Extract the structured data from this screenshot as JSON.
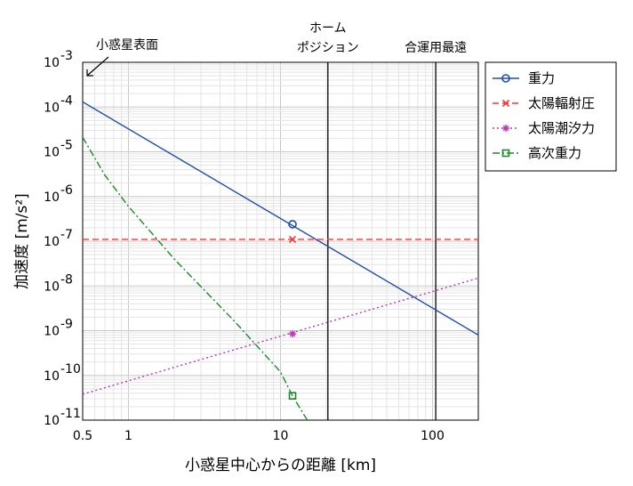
{
  "chart_data": {
    "type": "line",
    "xlabel": "小惑星中心からの距離 [km]",
    "ylabel": "加速度 [m/s²]",
    "xscale": "log",
    "yscale": "log",
    "xlim": [
      0.5,
      200
    ],
    "ylim": [
      1e-11,
      0.001
    ],
    "grid": true,
    "legend_position": "outside-top-right",
    "x_ticks": [
      {
        "value": 0.5,
        "label": "0.5"
      },
      {
        "value": 1,
        "label": "1"
      },
      {
        "value": 10,
        "label": "10"
      },
      {
        "value": 100,
        "label": "100"
      }
    ],
    "y_ticks": [
      {
        "value": 1e-11,
        "base": "10",
        "exp": "-11"
      },
      {
        "value": 1e-10,
        "base": "10",
        "exp": "-10"
      },
      {
        "value": 1e-09,
        "base": "10",
        "exp": "-9"
      },
      {
        "value": 1e-08,
        "base": "10",
        "exp": "-8"
      },
      {
        "value": 1e-07,
        "base": "10",
        "exp": "-7"
      },
      {
        "value": 1e-06,
        "base": "10",
        "exp": "-6"
      },
      {
        "value": 1e-05,
        "base": "10",
        "exp": "-5"
      },
      {
        "value": 0.0001,
        "base": "10",
        "exp": "-4"
      },
      {
        "value": 0.001,
        "base": "10",
        "exp": "-3"
      }
    ],
    "series": [
      {
        "name": "重力",
        "color": "#1f4fa8",
        "dash": "solid",
        "marker": "circle",
        "points": [
          [
            0.5,
            0.00013
          ],
          [
            200,
            8e-10
          ]
        ],
        "marker_at": [
          12,
          2.4e-07
        ]
      },
      {
        "name": "太陽輻射圧",
        "color": "#ff3333",
        "dash": "dashed",
        "marker": "x",
        "points": [
          [
            0.5,
            1.1e-07
          ],
          [
            200,
            1.1e-07
          ]
        ],
        "marker_at": [
          12,
          1.1e-07
        ]
      },
      {
        "name": "太陽潮汐力",
        "color": "#bb33bb",
        "dash": "dotted",
        "marker": "star",
        "points": [
          [
            0.5,
            3.8e-11
          ],
          [
            200,
            1.5e-08
          ]
        ],
        "marker_at": [
          12,
          8.5e-10
        ]
      },
      {
        "name": "高次重力",
        "color": "#1a8a2a",
        "dash": "dashdot",
        "marker": "square",
        "points": [
          [
            0.5,
            2.1e-05
          ],
          [
            0.7,
            3e-06
          ],
          [
            1,
            6e-07
          ],
          [
            2,
            4e-08
          ],
          [
            5,
            1.6e-09
          ],
          [
            10,
            1.2e-10
          ],
          [
            12,
            3.5e-11
          ],
          [
            15,
            1e-11
          ]
        ],
        "marker_at": [
          12,
          3.5e-11
        ]
      }
    ],
    "vlines": [
      {
        "value": 20.5,
        "label": "ホーム\nポジション"
      },
      {
        "value": 105,
        "label": "合運用最遠"
      }
    ],
    "surface_annotation": {
      "text": "小惑星表面",
      "x": 0.5,
      "y": 0.001
    }
  }
}
